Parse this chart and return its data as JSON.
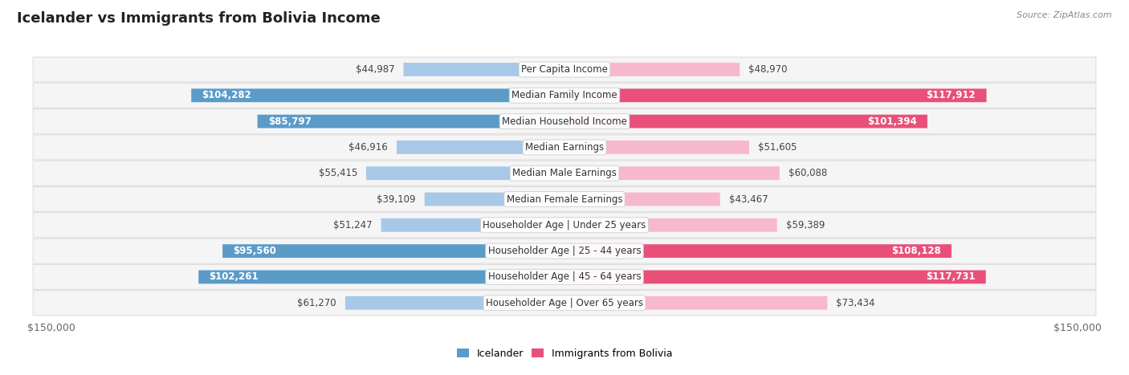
{
  "title": "Icelander vs Immigrants from Bolivia Income",
  "source": "Source: ZipAtlas.com",
  "categories": [
    "Per Capita Income",
    "Median Family Income",
    "Median Household Income",
    "Median Earnings",
    "Median Male Earnings",
    "Median Female Earnings",
    "Householder Age | Under 25 years",
    "Householder Age | 25 - 44 years",
    "Householder Age | 45 - 64 years",
    "Householder Age | Over 65 years"
  ],
  "icelander_values": [
    44987,
    104282,
    85797,
    46916,
    55415,
    39109,
    51247,
    95560,
    102261,
    61270
  ],
  "bolivia_values": [
    48970,
    117912,
    101394,
    51605,
    60088,
    43467,
    59389,
    108128,
    117731,
    73434
  ],
  "icelander_color_light": "#a8c8e8",
  "icelander_color_dark": "#5b9bc8",
  "bolivia_color_light": "#f8b8cc",
  "bolivia_color_dark": "#e8507a",
  "max_value": 150000,
  "threshold": 80000,
  "title_fontsize": 13,
  "label_fontsize": 8.5,
  "value_fontsize": 8.5,
  "axis_label": "$150,000",
  "legend_icelander": "Icelander",
  "legend_bolivia": "Immigrants from Bolivia",
  "row_bg_color": "#f0f0f0",
  "row_bg_alt_color": "#fafafa"
}
